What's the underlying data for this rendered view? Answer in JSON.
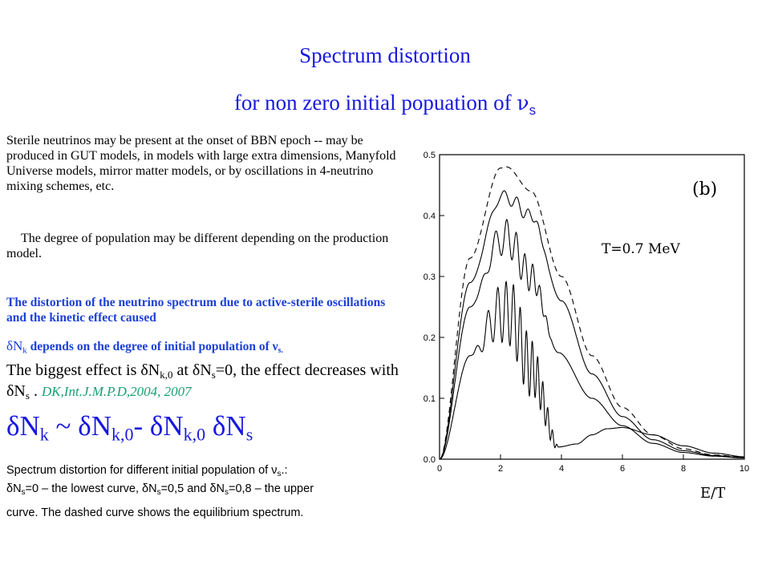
{
  "title": {
    "line1": "Spectrum distortion",
    "line2_text": "for non zero initial popuation of ",
    "line2_nu": "ν",
    "line2_sub": "s"
  },
  "text": {
    "p1": "Sterile neutrinos may be present at the onset of BBN epoch -- may be produced in GUT models, in models with large extra dimensions, Manyfold Universe models, mirror matter models, or by oscillations in 4-neutrino mixing schemes, etc.",
    "p2": "The degree of population may be different depending on the production model.",
    "p3": "The distortion of the neutrino spectrum due to active-sterile oscillations and the kinetic effect caused",
    "p4_a": "δN",
    "p4_a_sub": "k",
    "p4_b": " depends on the degree of initial population of ν",
    "p4_b_sub": "s.",
    "p5_a": "The biggest effect is δN",
    "p5_a_sub": "k,0",
    "p5_b": " at  δN",
    "p5_b_sub": "s",
    "p5_c": "=0,  the effect decreases with δN",
    "p5_c_sub": "s",
    "p5_d": " . ",
    "p5_ref": "DK,Int.J.M.P.D,2004, 2007",
    "formula_parts": [
      "δN",
      "k",
      " ~ δN",
      "k,0",
      "- δN",
      "k,0",
      " δN",
      "s"
    ],
    "cap1_a": "Spectrum distortion for different initial population of ν",
    "cap1_sub": "s",
    "cap1_b": ".:",
    "cap2_a": "δN",
    "cap2_a_sub": "s",
    "cap2_b": "=0 – the lowest curve, δN",
    "cap2_b_sub": "s",
    "cap2_c": "=0,5 and δN",
    "cap2_c_sub": "s",
    "cap2_d": "=0,8 – the upper",
    "cap3": "curve. The dashed curve shows the equilibrium spectrum."
  },
  "chart_data": {
    "type": "line",
    "xlabel": "E/T",
    "ylabel": "",
    "xlim": [
      0,
      10
    ],
    "ylim": [
      0,
      0.5
    ],
    "xticks": [
      "0",
      "2",
      "4",
      "6",
      "8",
      "10"
    ],
    "yticks": [
      "0.0",
      "0.1",
      "0.2",
      "0.3",
      "0.4",
      "0.5"
    ],
    "annotations": [
      "(b)",
      "T=0.7 MeV"
    ],
    "series": [
      {
        "style": "dashed",
        "x": [
          0,
          1,
          2,
          2.2,
          3,
          4,
          5,
          6,
          7,
          8,
          9,
          10
        ],
        "y": [
          0,
          0.33,
          0.478,
          0.48,
          0.44,
          0.3,
          0.17,
          0.085,
          0.04,
          0.017,
          0.007,
          0.003
        ]
      },
      {
        "style": "solid",
        "x": [
          0,
          1,
          2,
          2.2,
          3,
          4,
          5,
          6,
          7,
          8,
          9,
          10
        ],
        "y": [
          0,
          0.29,
          0.43,
          0.43,
          0.4,
          0.26,
          0.14,
          0.07,
          0.032,
          0.014,
          0.006,
          0.0025
        ]
      },
      {
        "style": "solid",
        "x": [
          0,
          1,
          2,
          2.2,
          3,
          3.9,
          5,
          6,
          7,
          8,
          9,
          10
        ],
        "y": [
          0,
          0.25,
          0.36,
          0.365,
          0.3,
          0.175,
          0.1,
          0.055,
          0.026,
          0.011,
          0.005,
          0.002
        ]
      },
      {
        "style": "solid",
        "x": [
          0,
          1,
          2,
          2.3,
          3,
          3.9,
          4.5,
          5,
          5.5,
          6,
          7,
          8,
          9,
          10
        ],
        "y": [
          0,
          0.17,
          0.24,
          0.24,
          0.15,
          0.02,
          0.025,
          0.04,
          0.05,
          0.052,
          0.04,
          0.022,
          0.01,
          0.004
        ]
      }
    ]
  }
}
